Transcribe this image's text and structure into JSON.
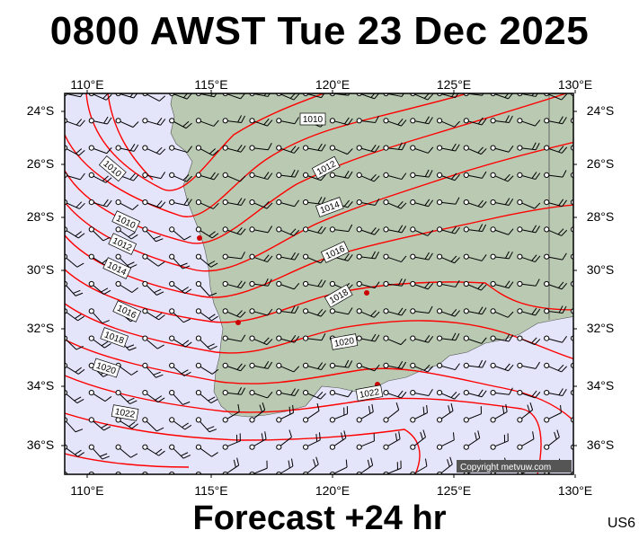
{
  "title": "0800 AWST Tue 23 Dec 2025",
  "subtitle": "Forecast +24 hr",
  "region_code": "US6",
  "copyright": "Copyright metvuw.com",
  "colors": {
    "ocean": "#e4e4fa",
    "land": "#b9c9b2",
    "isobar": "#ff0000",
    "wind": "#000000",
    "frame": "#000000"
  },
  "axes": {
    "lon_labels": [
      "110°E",
      "115°E",
      "120°E",
      "125°E",
      "130°E"
    ],
    "lat_labels": [
      "24°S",
      "26°S",
      "28°S",
      "30°S",
      "32°S",
      "34°S",
      "36°S"
    ]
  },
  "isobar_labels": [
    "1010",
    "1012",
    "1014",
    "1016",
    "1018",
    "1020",
    "1022"
  ],
  "map_content": {
    "type": "mean sea level pressure and wind barbs",
    "isobar_interval_hPa": 2,
    "wind_symbol": "barb"
  }
}
